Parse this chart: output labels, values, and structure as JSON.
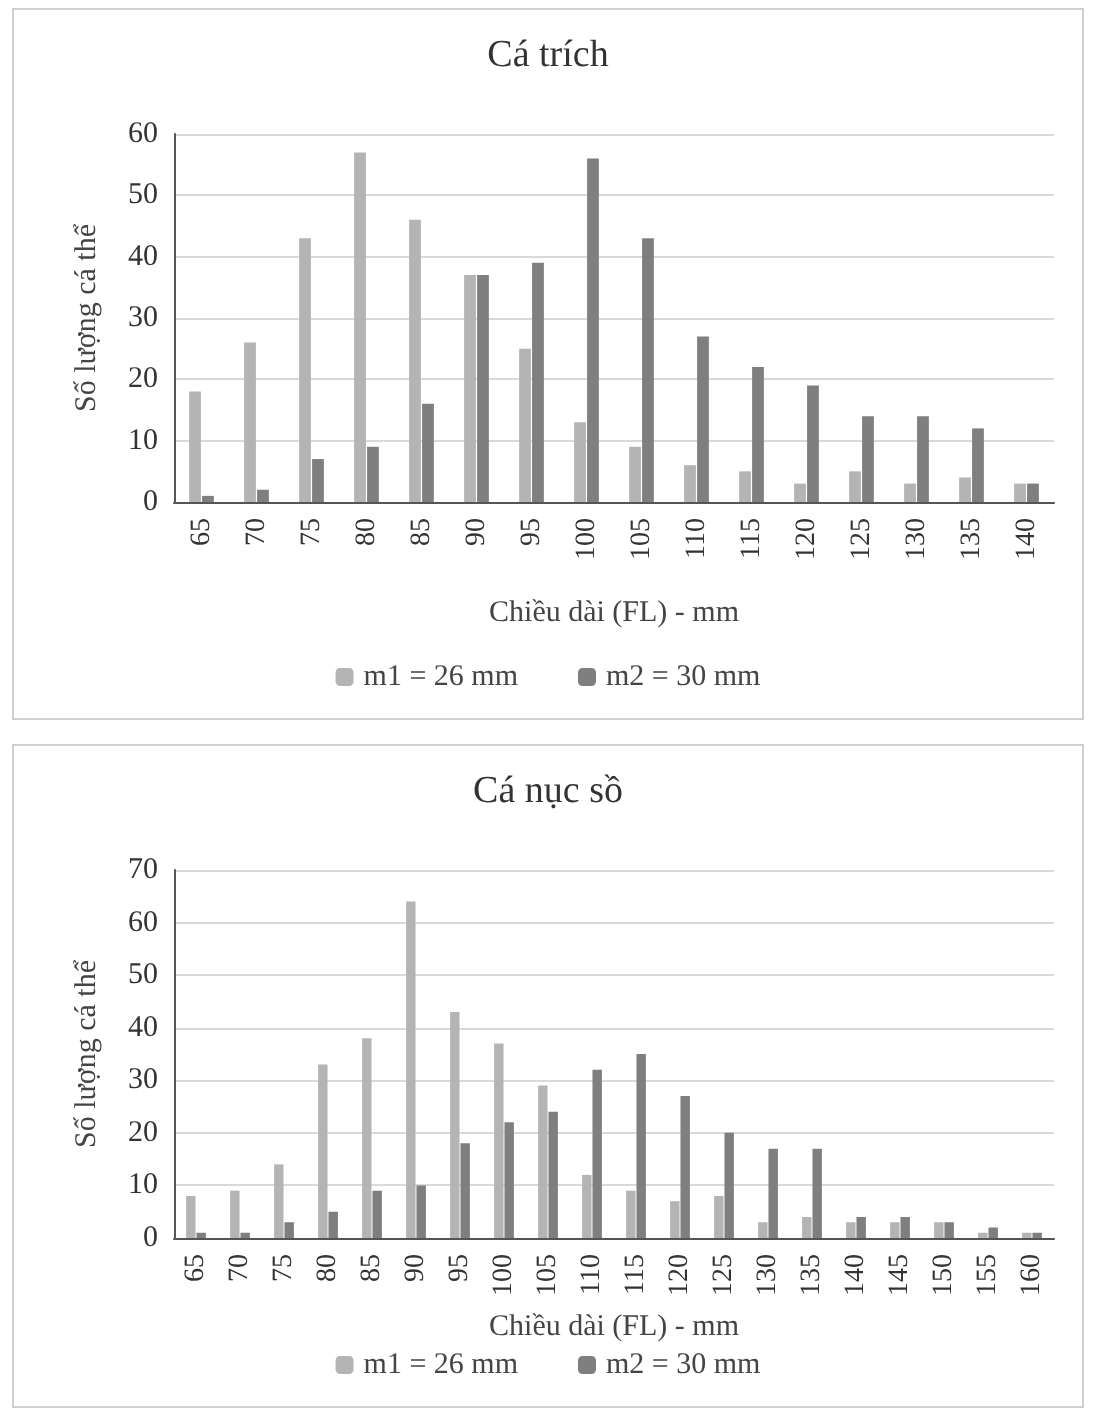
{
  "chart_data": [
    {
      "type": "bar",
      "title": "Cá trích",
      "xlabel": "Chiều dài (FL) - mm",
      "ylabel": "Số lượng cá thể",
      "categories": [
        "65",
        "70",
        "75",
        "80",
        "85",
        "90",
        "95",
        "100",
        "105",
        "110",
        "115",
        "120",
        "125",
        "130",
        "135",
        "140"
      ],
      "series": [
        {
          "name": "m1 = 26 mm",
          "color": "#b4b4b4",
          "values": [
            18,
            26,
            43,
            57,
            46,
            37,
            25,
            13,
            9,
            6,
            5,
            3,
            5,
            3,
            4,
            3
          ]
        },
        {
          "name": "m2 = 30 mm",
          "color": "#7f7f7f",
          "values": [
            1,
            2,
            7,
            9,
            16,
            37,
            39,
            56,
            43,
            27,
            22,
            19,
            14,
            14,
            12,
            3
          ]
        }
      ],
      "ylim": [
        0,
        60
      ],
      "yticks": [
        0,
        10,
        20,
        30,
        40,
        50,
        60
      ],
      "grid": "y",
      "legend": "bottom"
    },
    {
      "type": "bar",
      "title": "Cá nục sồ",
      "xlabel": "Chiều dài (FL) - mm",
      "ylabel": "Số lượng cá thể",
      "categories": [
        "65",
        "70",
        "75",
        "80",
        "85",
        "90",
        "95",
        "100",
        "105",
        "110",
        "115",
        "120",
        "125",
        "130",
        "135",
        "140",
        "145",
        "150",
        "155",
        "160"
      ],
      "series": [
        {
          "name": "m1 = 26 mm",
          "color": "#b4b4b4",
          "values": [
            8,
            9,
            14,
            33,
            38,
            64,
            43,
            37,
            29,
            12,
            9,
            7,
            8,
            3,
            4,
            3,
            3,
            3,
            1,
            1
          ]
        },
        {
          "name": "m2 = 30 mm",
          "color": "#7f7f7f",
          "values": [
            1,
            1,
            3,
            5,
            9,
            10,
            18,
            22,
            24,
            32,
            35,
            27,
            20,
            17,
            17,
            4,
            4,
            3,
            2,
            1
          ]
        }
      ],
      "ylim": [
        0,
        70
      ],
      "yticks": [
        0,
        10,
        20,
        30,
        40,
        50,
        60,
        70
      ],
      "grid": "y",
      "legend": "bottom"
    }
  ]
}
